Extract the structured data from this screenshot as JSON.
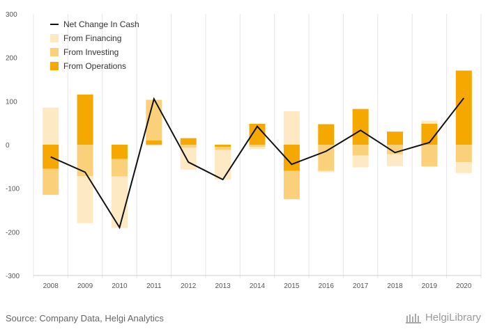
{
  "chart_data": {
    "type": "bar",
    "stacked": true,
    "categories": [
      "2008",
      "2009",
      "2010",
      "2011",
      "2012",
      "2013",
      "2014",
      "2015",
      "2016",
      "2017",
      "2018",
      "2019",
      "2020"
    ],
    "ylim": [
      -300,
      300
    ],
    "yticks": [
      -300,
      -200,
      -100,
      0,
      100,
      200,
      300
    ],
    "series": [
      {
        "name": "From Operations",
        "color": "#f5a800",
        "values": [
          -55,
          115,
          -33,
          10,
          15,
          -5,
          48,
          -60,
          47,
          82,
          30,
          48,
          170
        ]
      },
      {
        "name": "From Investing",
        "color": "#fad17a",
        "values": [
          -60,
          -72,
          -40,
          93,
          -7,
          -7,
          -5,
          -65,
          -60,
          -25,
          -22,
          -50,
          -40
        ]
      },
      {
        "name": "From Financing",
        "color": "#fde9c3",
        "values": [
          85,
          -108,
          -118,
          -3,
          -50,
          -68,
          -5,
          77,
          -3,
          -27,
          -27,
          7,
          -25
        ]
      }
    ],
    "line": {
      "name": "Net Change In Cash",
      "color": "#111111",
      "values": [
        -28,
        -63,
        -190,
        105,
        -40,
        -80,
        42,
        -45,
        -15,
        33,
        -18,
        5,
        107
      ]
    },
    "legend_order": [
      "Net Change In Cash",
      "From Financing",
      "From Investing",
      "From Operations"
    ],
    "legend_position": "top-left",
    "grid": "vertical"
  },
  "footer": {
    "source": "Source: Company Data, Helgi Analytics",
    "brand": "HelgiLibrary"
  }
}
